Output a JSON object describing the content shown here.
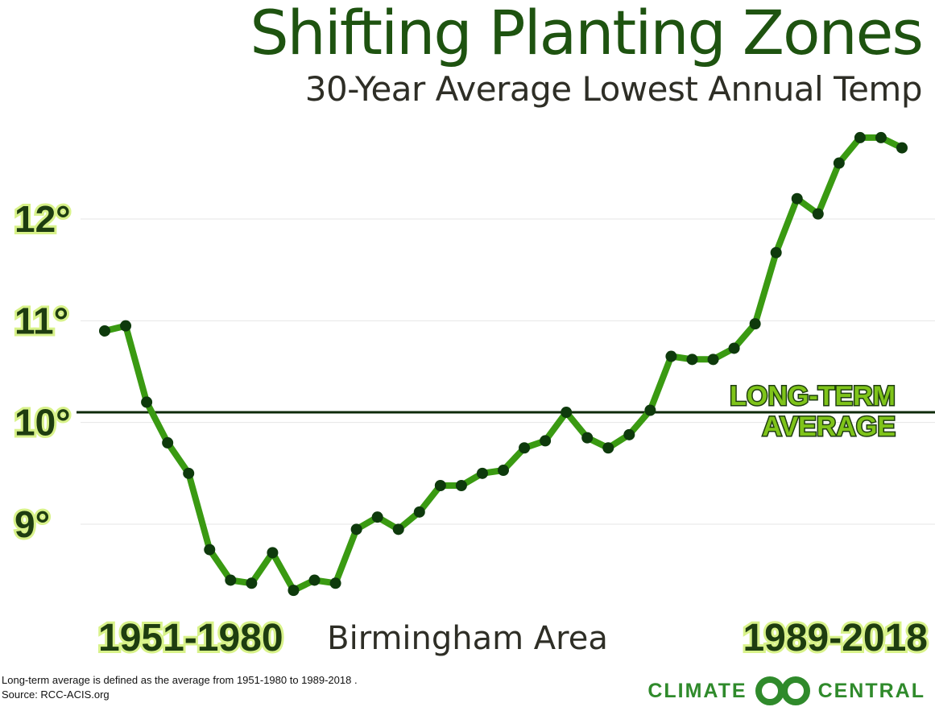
{
  "chart_data": {
    "type": "line",
    "title": "Shifting Planting Zones",
    "subtitle": "30-Year Average Lowest Annual Temp",
    "location": "Birmingham Area",
    "start_label": "1951-1980",
    "end_label": "1989-2018",
    "yticks": [
      "12°",
      "11°",
      "10°",
      "9°"
    ],
    "ytick_values": [
      12,
      11,
      10,
      9
    ],
    "ylim": [
      8.0,
      13.0
    ],
    "long_term_average": {
      "value": 10.1,
      "label_line1": "LONG-TERM",
      "label_line2": "AVERAGE"
    },
    "series": [
      {
        "values": [
          10.9,
          10.95,
          10.2,
          9.8,
          9.5,
          8.75,
          8.45,
          8.42,
          8.72,
          8.35,
          8.45,
          8.42,
          8.95,
          9.07,
          8.95,
          9.12,
          9.38,
          9.38,
          9.5,
          9.53,
          9.75,
          9.82,
          10.1,
          9.85,
          9.75,
          9.88,
          10.12,
          10.65,
          10.62,
          10.62,
          10.73,
          10.97,
          11.67,
          12.2,
          12.05,
          12.55,
          12.8,
          12.8,
          12.7
        ]
      }
    ],
    "colors": {
      "line": "#3a9a12",
      "marker": "#0e3a0c",
      "average_line": "#0e2a0a",
      "grid": "#e6e6e6"
    }
  },
  "footnote": {
    "line1": "Long-term average is defined as the average from 1951-1980 to 1989-2018 .",
    "line2": "Source: RCC-ACIS.org"
  },
  "logo": {
    "left": "CLIMATE",
    "right": "CENTRAL"
  }
}
